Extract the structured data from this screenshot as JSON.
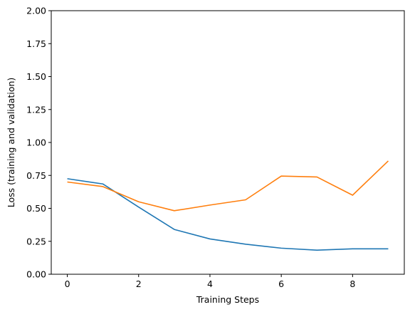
{
  "chart_data": {
    "type": "line",
    "title": "",
    "xlabel": "Training Steps",
    "ylabel": "Loss (training and validation)",
    "xlim": [
      -0.45,
      9.45
    ],
    "ylim": [
      0,
      2
    ],
    "xticks": [
      0,
      2,
      4,
      6,
      8
    ],
    "yticks": [
      0.0,
      0.25,
      0.5,
      0.75,
      1.0,
      1.25,
      1.5,
      1.75,
      2.0
    ],
    "ytick_labels": [
      "0.00",
      "0.25",
      "0.50",
      "0.75",
      "1.00",
      "1.25",
      "1.50",
      "1.75",
      "2.00"
    ],
    "grid": false,
    "legend": "none",
    "x": [
      0,
      1,
      2,
      3,
      4,
      5,
      6,
      7,
      8,
      9
    ],
    "series": [
      {
        "color": "#1f77b4",
        "values": [
          0.725,
          0.685,
          0.51,
          0.34,
          0.268,
          0.228,
          0.198,
          0.183,
          0.193,
          0.193
        ]
      },
      {
        "color": "#ff7f0e",
        "values": [
          0.7,
          0.665,
          0.55,
          0.482,
          0.525,
          0.565,
          0.745,
          0.738,
          0.6,
          0.86
        ]
      }
    ]
  }
}
